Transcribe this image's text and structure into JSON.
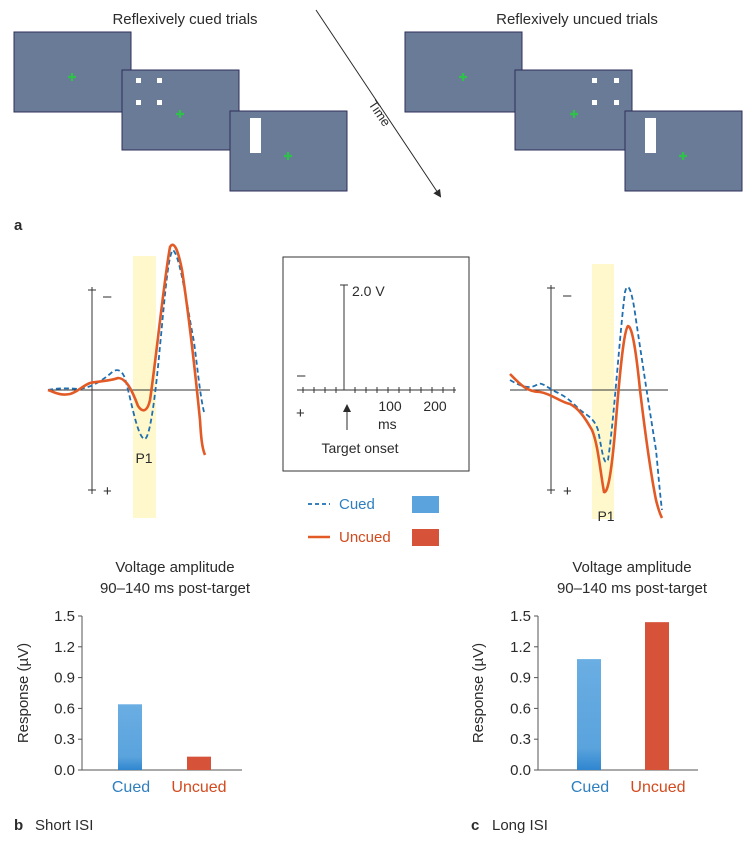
{
  "panel_a": {
    "label": "a",
    "cued_title": "Reflexively cued trials",
    "uncued_title": "Reflexively uncued trials",
    "time_label": "Time",
    "screen_color": "#6a7b97",
    "fixation_color": "#2ec24a"
  },
  "waveforms": {
    "minus": "–",
    "plus": "+",
    "p1_label": "P1",
    "highlight_color": "#fff8cc",
    "cued_color": "#1f6fb0",
    "uncued_color": "#e25a25"
  },
  "scale_box": {
    "voltage_label": "2.0 V",
    "minus": "–",
    "plus": "+",
    "ticks": [
      "100",
      "200"
    ],
    "unit": "ms",
    "onset_label": "Target onset"
  },
  "legend": {
    "cued_label": "Cued",
    "uncued_label": "Uncued",
    "cued_color": "#5aa3dd",
    "uncued_color": "#d6533a"
  },
  "chart_data": [
    {
      "type": "bar",
      "panel_label": "b",
      "panel_title": "Short ISI",
      "title_line1": "Voltage amplitude",
      "title_line2": "90–140 ms post-target",
      "ylabel": "Response (µV)",
      "yticks": [
        "0.0",
        "0.3",
        "0.6",
        "0.9",
        "1.2",
        "1.5"
      ],
      "ylim": [
        0,
        1.5
      ],
      "categories": [
        "Cued",
        "Uncued"
      ],
      "values": [
        0.64,
        0.13
      ],
      "colors": [
        "#5aa3dd",
        "#d6533a"
      ]
    },
    {
      "type": "bar",
      "panel_label": "c",
      "panel_title": "Long ISI",
      "title_line1": "Voltage amplitude",
      "title_line2": "90–140 ms post-target",
      "ylabel": "Response (µV)",
      "yticks": [
        "0.0",
        "0.3",
        "0.6",
        "0.9",
        "1.2",
        "1.5"
      ],
      "ylim": [
        0,
        1.5
      ],
      "categories": [
        "Cued",
        "Uncued"
      ],
      "values": [
        1.08,
        1.44
      ],
      "colors": [
        "#5aa3dd",
        "#d6533a"
      ]
    }
  ]
}
